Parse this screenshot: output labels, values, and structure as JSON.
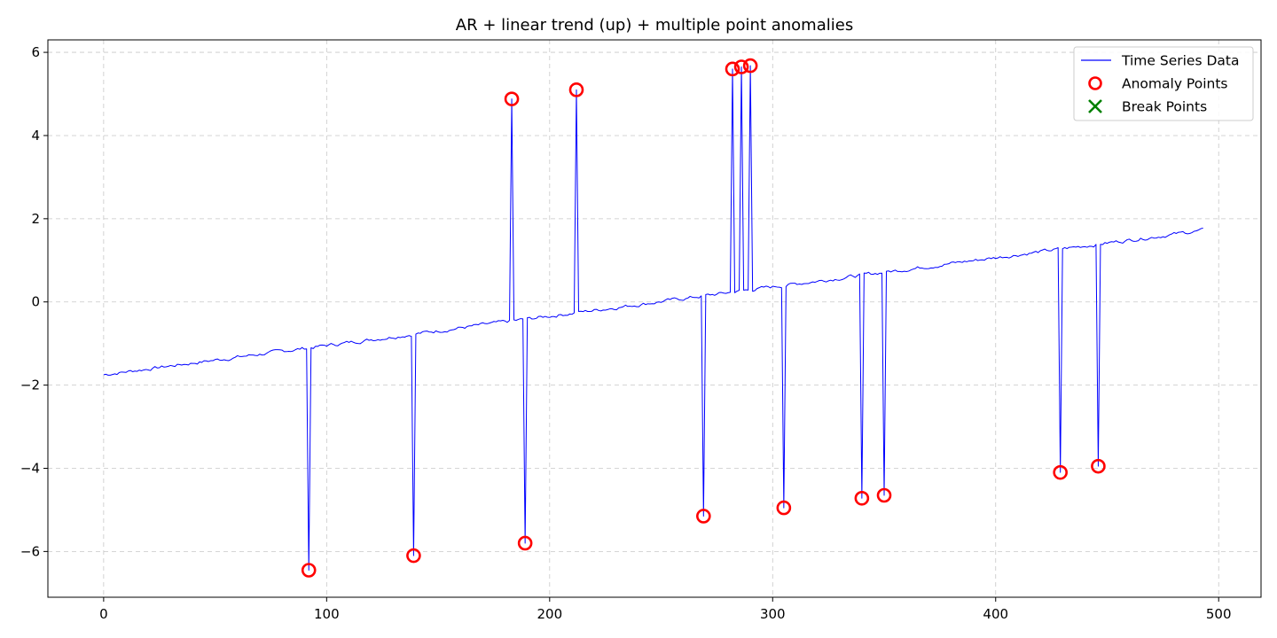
{
  "chart_data": {
    "type": "line",
    "title": "AR + linear trend (up) + multiple point anomalies",
    "xlabel": "",
    "ylabel": "",
    "xlim": [
      -25,
      519
    ],
    "ylim": [
      -7.1,
      6.3
    ],
    "xticks": [
      0,
      100,
      200,
      300,
      400,
      500
    ],
    "yticks": [
      -6,
      -4,
      -2,
      0,
      2,
      4,
      6
    ],
    "grid": true,
    "legend_position": "top-right",
    "legend": [
      {
        "label": "Time Series Data",
        "kind": "line",
        "color": "#0000ff"
      },
      {
        "label": "Anomaly Points",
        "kind": "circle",
        "color": "#ff0000"
      },
      {
        "label": "Break Points",
        "kind": "x",
        "color": "#008000"
      }
    ],
    "series": [
      {
        "name": "Time Series Data",
        "kind": "line",
        "color": "#0000ff",
        "n_points": 494,
        "trend_start": -1.75,
        "trend_end": 1.72
      },
      {
        "name": "Anomaly Points",
        "kind": "scatter",
        "color": "#ff0000",
        "points": [
          {
            "x": 92,
            "y": -6.45
          },
          {
            "x": 139,
            "y": -6.1
          },
          {
            "x": 183,
            "y": 4.88
          },
          {
            "x": 189,
            "y": -5.8
          },
          {
            "x": 212,
            "y": 5.1
          },
          {
            "x": 269,
            "y": -5.15
          },
          {
            "x": 282,
            "y": 5.6
          },
          {
            "x": 286,
            "y": 5.65
          },
          {
            "x": 290,
            "y": 5.68
          },
          {
            "x": 305,
            "y": -4.95
          },
          {
            "x": 340,
            "y": -4.72
          },
          {
            "x": 350,
            "y": -4.65
          },
          {
            "x": 429,
            "y": -4.1
          },
          {
            "x": 446,
            "y": -3.95
          }
        ]
      },
      {
        "name": "Break Points",
        "kind": "scatter",
        "color": "#008000",
        "points": []
      }
    ]
  }
}
